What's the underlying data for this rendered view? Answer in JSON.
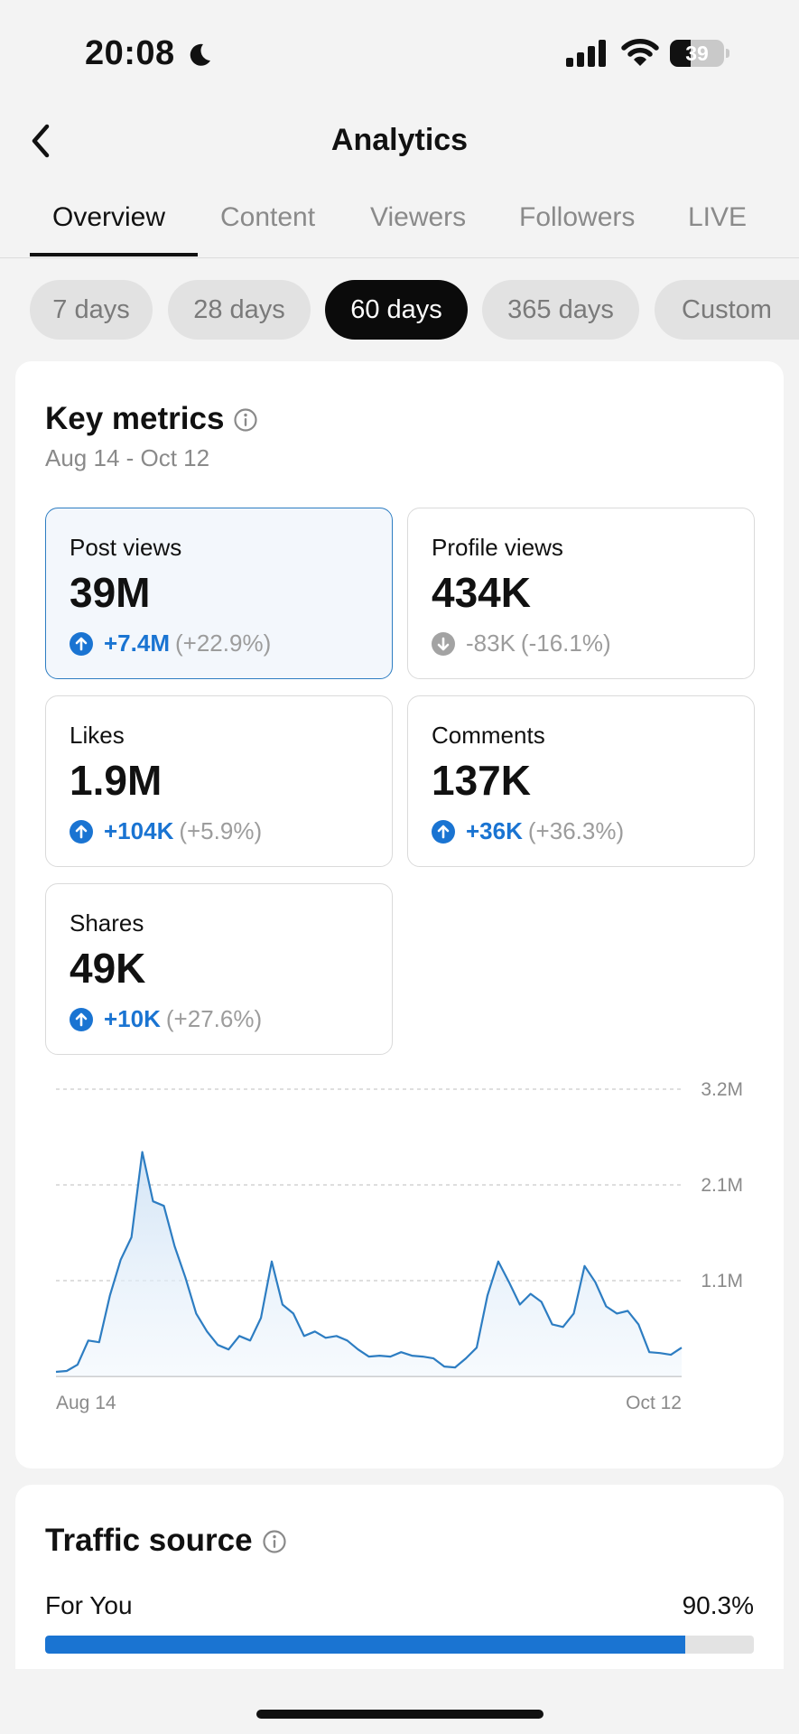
{
  "status_bar": {
    "time": "20:08",
    "battery_level": "39",
    "battery_fraction": 0.39,
    "icons": [
      "moon-icon",
      "cellular-signal-icon",
      "wifi-icon",
      "battery-icon"
    ]
  },
  "header": {
    "title": "Analytics",
    "back_icon": "chevron-left-icon"
  },
  "tabs": [
    {
      "label": "Overview",
      "active": true
    },
    {
      "label": "Content",
      "active": false
    },
    {
      "label": "Viewers",
      "active": false
    },
    {
      "label": "Followers",
      "active": false
    },
    {
      "label": "LIVE",
      "active": false
    }
  ],
  "periods": [
    {
      "label": "7 days",
      "active": false
    },
    {
      "label": "28 days",
      "active": false
    },
    {
      "label": "60 days",
      "active": true
    },
    {
      "label": "365 days",
      "active": false
    },
    {
      "label": "Custom",
      "active": false
    }
  ],
  "key_metrics": {
    "title": "Key metrics",
    "info_icon": "info-icon",
    "date_range": "Aug 14 - Oct 12",
    "items": [
      {
        "label": "Post views",
        "value": "39M",
        "change": "+7.4M",
        "change_pct": "(+22.9%)",
        "direction": "up",
        "selected": true
      },
      {
        "label": "Profile views",
        "value": "434K",
        "change": "-83K",
        "change_pct": "(-16.1%)",
        "direction": "down",
        "selected": false
      },
      {
        "label": "Likes",
        "value": "1.9M",
        "change": "+104K",
        "change_pct": "(+5.9%)",
        "direction": "up",
        "selected": false
      },
      {
        "label": "Comments",
        "value": "137K",
        "change": "+36K",
        "change_pct": "(+36.3%)",
        "direction": "up",
        "selected": false
      },
      {
        "label": "Shares",
        "value": "49K",
        "change": "+10K",
        "change_pct": "(+27.6%)",
        "direction": "up",
        "selected": false
      }
    ]
  },
  "chart_data": {
    "type": "area",
    "xlabel": "",
    "ylabel": "",
    "x_start_label": "Aug 14",
    "x_end_label": "Oct 12",
    "y_ticks": [
      "1.1M",
      "2.1M",
      "3.2M"
    ],
    "y_tick_values": [
      1066667,
      2133333,
      3200000
    ],
    "ylim": [
      0,
      3200000
    ],
    "grid": true,
    "legend": "none",
    "series": [
      {
        "color": "#2d7dc2",
        "values": [
          50000,
          60000,
          130000,
          400000,
          380000,
          900000,
          1300000,
          1550000,
          2500000,
          1950000,
          1900000,
          1450000,
          1100000,
          700000,
          500000,
          350000,
          300000,
          450000,
          400000,
          650000,
          1280000,
          800000,
          700000,
          450000,
          500000,
          430000,
          450000,
          400000,
          300000,
          220000,
          230000,
          220000,
          270000,
          230000,
          220000,
          200000,
          110000,
          100000,
          200000,
          320000,
          900000,
          1280000,
          1050000,
          800000,
          920000,
          830000,
          580000,
          550000,
          700000,
          1230000,
          1050000,
          780000,
          700000,
          730000,
          580000,
          270000,
          260000,
          240000,
          320000
        ]
      }
    ]
  },
  "traffic_source": {
    "title": "Traffic source",
    "info_icon": "info-icon",
    "items": [
      {
        "label": "For You",
        "pct_label": "90.3%",
        "fraction": 0.903
      }
    ]
  }
}
